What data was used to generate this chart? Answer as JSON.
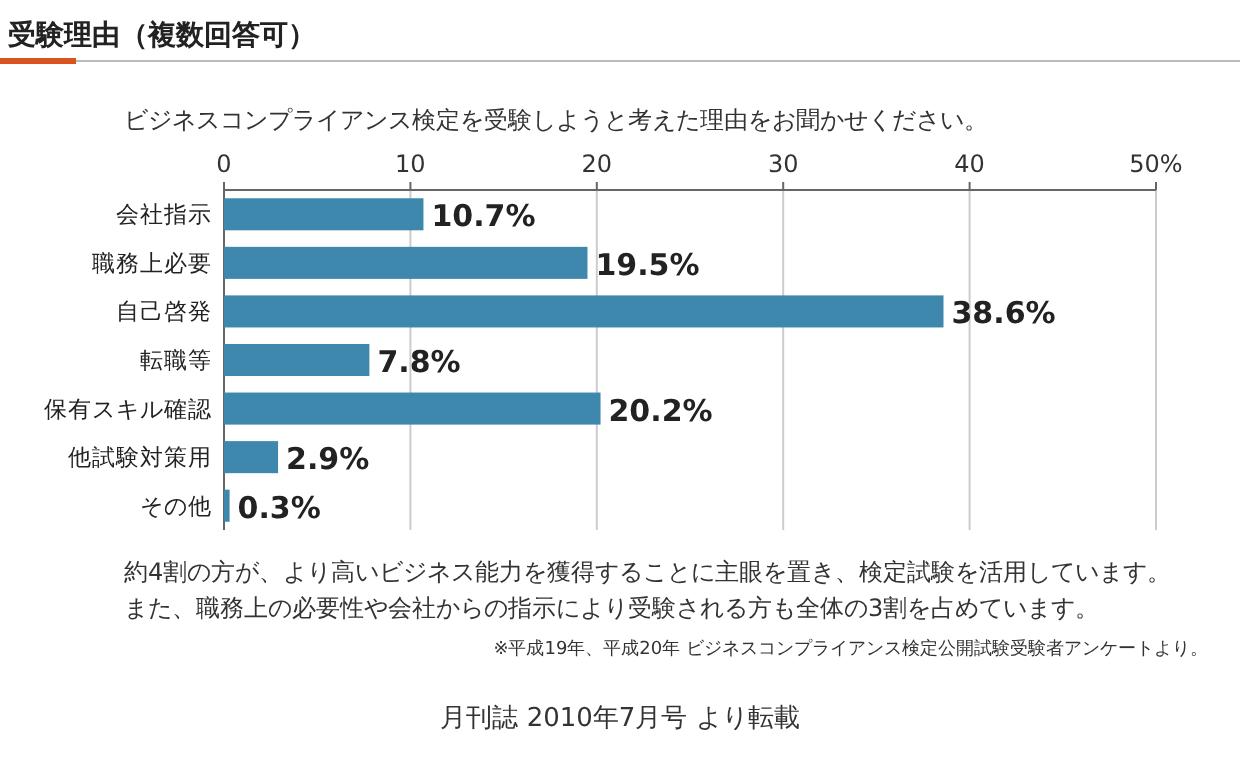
{
  "chart_data": {
    "type": "bar",
    "orientation": "horizontal",
    "title": "受験理由（複数回答可）",
    "subtitle": "ビジネスコンプライアンス検定を受験しようと考えた理由をお聞かせください。",
    "categories": [
      "会社指示",
      "職務上必要",
      "自己啓発",
      "転職等",
      "保有スキル確認",
      "他試験対策用",
      "その他"
    ],
    "values": [
      10.7,
      19.5,
      38.6,
      7.8,
      20.2,
      2.9,
      0.3
    ],
    "value_labels": [
      "10.7%",
      "19.5%",
      "38.6%",
      "7.8%",
      "20.2%",
      "2.9%",
      "0.3%"
    ],
    "color": "#3f88ad",
    "xlim": [
      0,
      50
    ],
    "xticks": [
      0,
      10,
      20,
      30,
      40,
      {
        "value": 50,
        "label": "50%"
      }
    ],
    "grid": "x",
    "annotations": [
      "約4割の方が、より高いビジネス能力を獲得することに主眼を置き、検定試験を活用しています。",
      "また、職務上の必要性や会社からの指示により受験される方も全体の3割を占めています。",
      "※平成19年、平成20年 ビジネスコンプライアンス検定公開試験受験者アンケートより。",
      "月刊誌 2010年7月号 より転載"
    ]
  }
}
